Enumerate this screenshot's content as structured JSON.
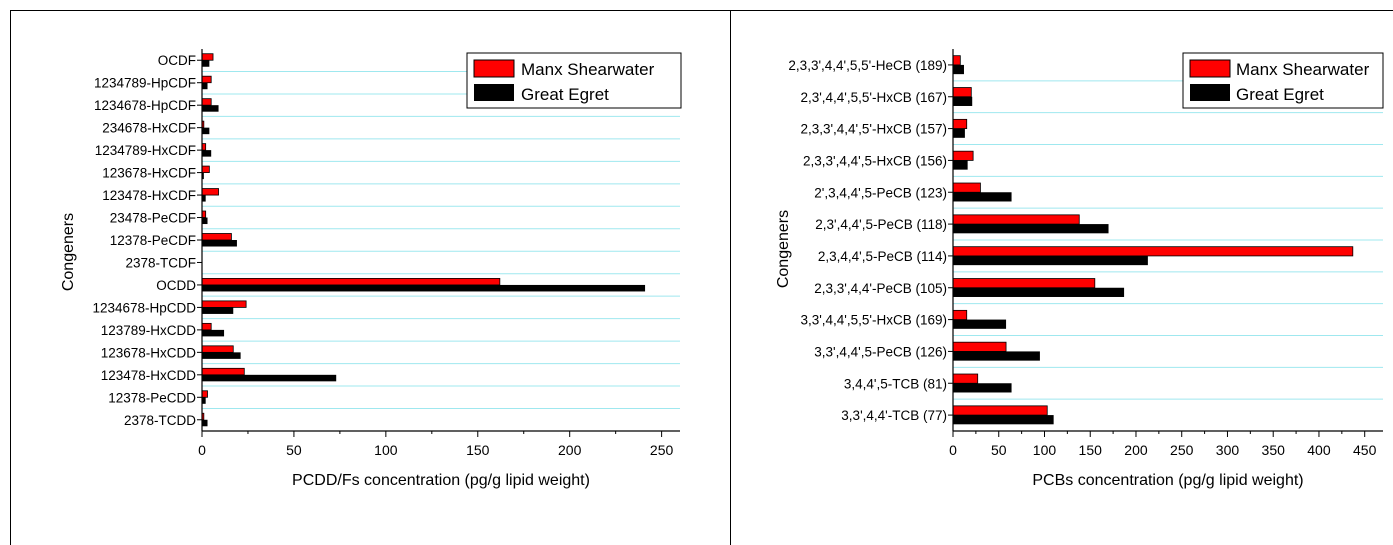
{
  "colors": {
    "series1": "#ff0000",
    "series2": "#000000",
    "grid": "#9fe8ef",
    "axis": "#000000"
  },
  "chart_data": [
    {
      "type": "bar",
      "orientation": "horizontal",
      "title": "",
      "xlabel": "PCDD/Fs concentration (pg/g lipid weight)",
      "ylabel": "Congeners",
      "xlim": [
        0,
        260
      ],
      "xticks": [
        "0",
        "50",
        "100",
        "150",
        "200",
        "250"
      ],
      "grid": true,
      "legend_position": "top-right",
      "categories": [
        "OCDF",
        "1234789-HpCDF",
        "1234678-HpCDF",
        "234678-HxCDF",
        "1234789-HxCDF",
        "123678-HxCDF",
        "123478-HxCDF",
        "23478-PeCDF",
        "12378-PeCDF",
        "2378-TCDF",
        "OCDD",
        "1234678-HpCDD",
        "123789-HxCDD",
        "123678-HxCDD",
        "123478-HxCDD",
        "12378-PeCDD",
        "2378-TCDD"
      ],
      "series": [
        {
          "name": "Manx Shearwater",
          "values": [
            6,
            5,
            5,
            1,
            2,
            4,
            9,
            2,
            16,
            0,
            162,
            24,
            5,
            17,
            23,
            3,
            1
          ]
        },
        {
          "name": "Great Egret",
          "values": [
            4,
            3,
            9,
            4,
            5,
            1,
            2,
            3,
            19,
            0,
            241,
            17,
            12,
            21,
            73,
            2,
            3
          ]
        }
      ]
    },
    {
      "type": "bar",
      "orientation": "horizontal",
      "title": "",
      "xlabel": "PCBs concentration (pg/g lipid weight)",
      "ylabel": "Congeners",
      "xlim": [
        0,
        470
      ],
      "xticks": [
        "0",
        "50",
        "100",
        "150",
        "200",
        "250",
        "300",
        "350",
        "400",
        "450"
      ],
      "grid": true,
      "legend_position": "top-right",
      "categories": [
        "2,3,3',4,4',5,5'-HeCB (189)",
        "2,3',4,4',5,5'-HxCB (167)",
        "2,3,3',4,4',5'-HxCB (157)",
        "2,3,3',4,4',5-HxCB (156)",
        "2',3,4,4',5-PeCB (123)",
        "2,3',4,4',5-PeCB (118)",
        "2,3,4,4',5-PeCB (114)",
        "2,3,3',4,4'-PeCB (105)",
        "3,3',4,4',5,5'-HxCB (169)",
        "3,3',4,4',5-PeCB (126)",
        "3,4,4',5-TCB (81)",
        "3,3',4,4'-TCB (77)"
      ],
      "series": [
        {
          "name": "Manx Shearwater",
          "values": [
            8,
            20,
            15,
            22,
            30,
            138,
            437,
            155,
            15,
            58,
            27,
            103
          ]
        },
        {
          "name": "Great Egret",
          "values": [
            12,
            21,
            13,
            16,
            64,
            170,
            213,
            187,
            58,
            95,
            64,
            110
          ]
        }
      ]
    }
  ]
}
